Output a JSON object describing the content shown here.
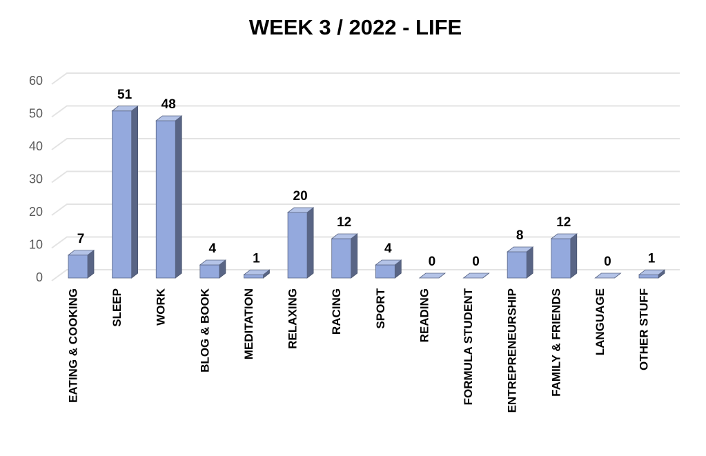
{
  "chart_data": {
    "type": "bar3d",
    "title": "WEEK 3  / 2022  - LIFE",
    "categories": [
      "EATING & COOKING",
      "SLEEP",
      "WORK",
      "BLOG & BOOK",
      "MEDITATION",
      "RELAXING",
      "RACING",
      "SPORT",
      "READING",
      "FORMULA STUDENT",
      "ENTREPRENEURSHIP",
      "FAMILY & FRIENDS",
      "LANGUAGE",
      "OTHER STUFF"
    ],
    "values": [
      7,
      51,
      48,
      4,
      1,
      20,
      12,
      4,
      0,
      0,
      8,
      12,
      0,
      1
    ],
    "color": "#94a9dd",
    "ylim": [
      0,
      60
    ],
    "yticks": [
      0,
      10,
      20,
      30,
      40,
      50,
      60
    ],
    "grid": true
  }
}
